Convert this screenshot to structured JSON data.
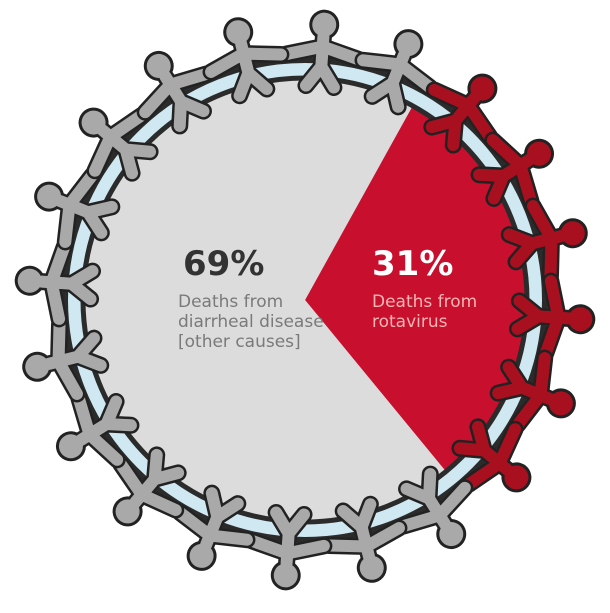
{
  "chart_data": {
    "type": "pie",
    "categories": [
      "Deaths from diarrheal disease [other causes]",
      "Deaths from rotavirus"
    ],
    "values": [
      69,
      31
    ],
    "value_labels": [
      "69%",
      "31%"
    ],
    "colors": [
      "#dcdcdc",
      "#c8102e"
    ]
  }
}
